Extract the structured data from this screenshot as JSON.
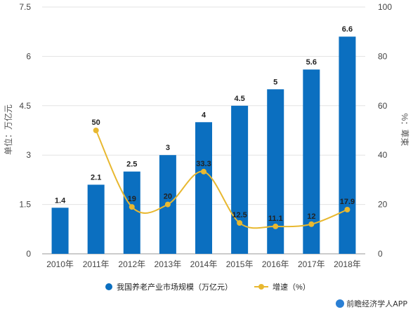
{
  "chart_data": {
    "type": "bar+line",
    "categories": [
      "2010年",
      "2011年",
      "2012年",
      "2013年",
      "2014年",
      "2015年",
      "2016年",
      "2017年",
      "2018年"
    ],
    "series": [
      {
        "name": "我国养老产业市场规模（万亿元）",
        "type": "bar",
        "axis": "left",
        "values": [
          1.4,
          2.1,
          2.5,
          3,
          4,
          4.5,
          5,
          5.6,
          6.6
        ],
        "labels": [
          "1.4",
          "2.1",
          "2.5",
          "3",
          "4",
          "4.5",
          "5",
          "5.6",
          "6.6"
        ],
        "color": "#0b6fc0"
      },
      {
        "name": "增速（%）",
        "type": "line",
        "axis": "right",
        "values": [
          null,
          50,
          19,
          20,
          33.3,
          12.5,
          11.1,
          12,
          17.9
        ],
        "labels": [
          "",
          "50",
          "19",
          "20",
          "33.3",
          "12.5",
          "11.1",
          "12",
          "17.9"
        ],
        "color": "#e8b830"
      }
    ],
    "ylabel_left": "单位：万亿元",
    "ylabel_right": "%：萆束",
    "ylim_left": [
      0,
      7.5
    ],
    "ylim_right": [
      0,
      100
    ],
    "yticks_left": [
      "0",
      "1.5",
      "3",
      "4.5",
      "6",
      "7.5"
    ],
    "yticks_right": [
      "0",
      "20",
      "40",
      "60",
      "80",
      "100"
    ],
    "grid": true,
    "legend_position": "bottom"
  },
  "watermark": "前瞻经济学人APP"
}
